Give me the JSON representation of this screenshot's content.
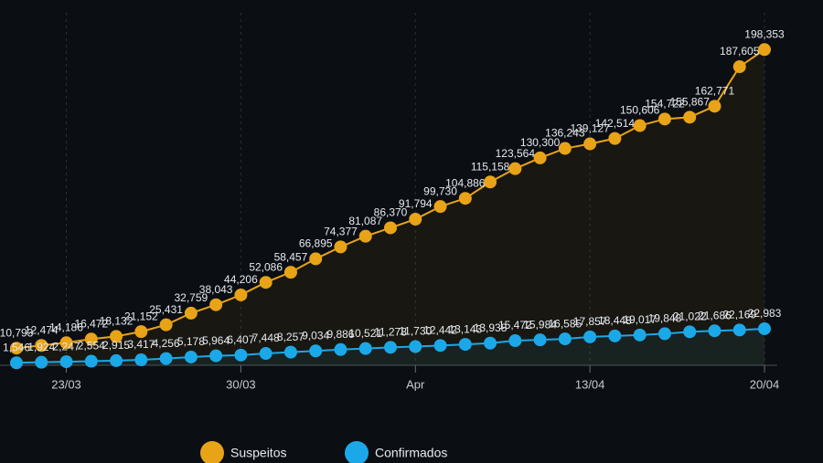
{
  "chart_data": {
    "type": "line",
    "categories": [
      null,
      null,
      "23/03",
      null,
      null,
      null,
      null,
      null,
      null,
      "30/03",
      null,
      null,
      null,
      null,
      null,
      null,
      "Apr",
      null,
      null,
      null,
      null,
      null,
      null,
      "13/04",
      null,
      null,
      null,
      null,
      null,
      null,
      "20/04"
    ],
    "series": [
      {
        "name": "Suspeitos",
        "color": "#e8a317",
        "values": [
          10793,
          12474,
          14186,
          16472,
          18132,
          21152,
          25431,
          32759,
          38043,
          44206,
          52086,
          58457,
          66895,
          74377,
          81087,
          86370,
          91794,
          99730,
          104886,
          115158,
          123564,
          130300,
          136243,
          139127,
          142514,
          150606,
          154722,
          155867,
          162771,
          187605,
          198353
        ],
        "value_labels": [
          "10,793",
          "12,474",
          "14,186",
          "16,472",
          "18,132",
          "21,152",
          "25,431",
          "32,759",
          "38,043",
          "44,206",
          "52,086",
          "58,457",
          "66,895",
          "74,377",
          "81,087",
          "86,370",
          "91,794",
          "99,730",
          "104,886",
          "115,158",
          "123,564",
          "130,300",
          "136,243",
          "139,127",
          "142,514",
          "150,606",
          "154,722",
          "155,867",
          "162,771",
          "187,605",
          "198,353"
        ]
      },
      {
        "name": "Confirmados",
        "color": "#1ba8e8",
        "values": [
          1546,
          1924,
          2247,
          2554,
          2915,
          3417,
          4256,
          5178,
          5964,
          6407,
          7448,
          8257,
          9034,
          9886,
          10521,
          11278,
          11730,
          12442,
          13143,
          13938,
          15472,
          15984,
          16585,
          17857,
          18448,
          19017,
          19848,
          21022,
          21686,
          22169,
          22983
        ],
        "value_labels": [
          "1,546",
          "1,924",
          "2,247",
          "2,554",
          "2,915",
          "3,417",
          "4,256",
          "5,178",
          "5,964",
          "6,407",
          "7,448",
          "8,257",
          "9,034",
          "9,886",
          "10,521",
          "11,278",
          "11,730",
          "12,442",
          "13,143",
          "13,938",
          "15,472",
          "15,984",
          "16,585",
          "17,857",
          "18,448",
          "19,017",
          "19,848",
          "21,022",
          "21,686",
          "22,169",
          "22,983"
        ]
      }
    ],
    "ylim": [
      0,
      210000
    ]
  }
}
